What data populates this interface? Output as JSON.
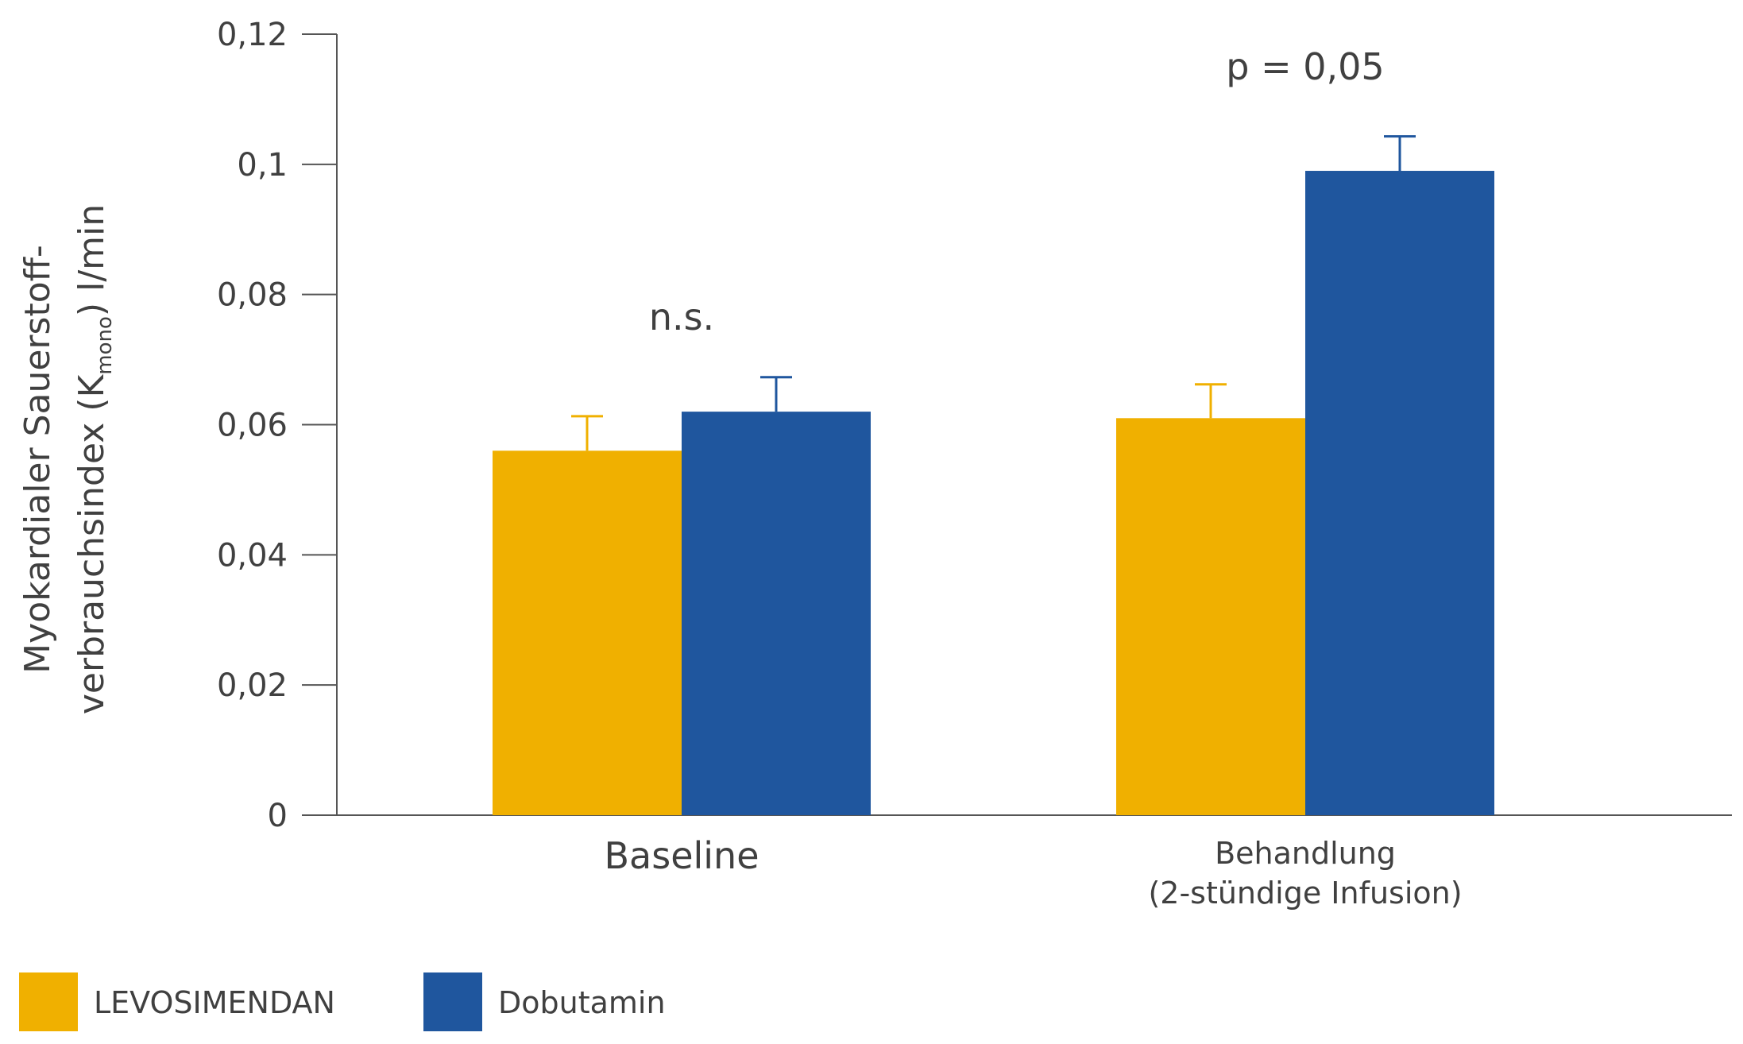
{
  "chart_data": {
    "type": "bar",
    "categories": [
      "Baseline",
      "Behandlung\n(2-stündige Infusion)"
    ],
    "series": [
      {
        "name": "LEVOSIMENDAN",
        "values": [
          0.056,
          0.061
        ],
        "errors": [
          0.0053,
          0.0052
        ],
        "color": "#F0B000"
      },
      {
        "name": "Dobutamin",
        "values": [
          0.062,
          0.099
        ],
        "errors": [
          0.0053,
          0.0053
        ],
        "color": "#1F569E"
      }
    ],
    "ylabel_line1": "Myokardialer Sauerstoff-",
    "ylabel_line2_prefix": "verbrauchsindex (K",
    "ylabel_subscript": "mono",
    "ylabel_line2_suffix": ") l/min",
    "ylim": [
      0,
      0.12
    ],
    "yticks": [
      0,
      0.02,
      0.04,
      0.06,
      0.08,
      0.1,
      0.12
    ],
    "ytick_labels": [
      "0",
      "0,02",
      "0,04",
      "0,06",
      "0,08",
      "0,1",
      "0,12"
    ],
    "annotations": [
      "n.s.",
      "p = 0,05"
    ],
    "grid": false,
    "legend_position": "bottom-left"
  }
}
